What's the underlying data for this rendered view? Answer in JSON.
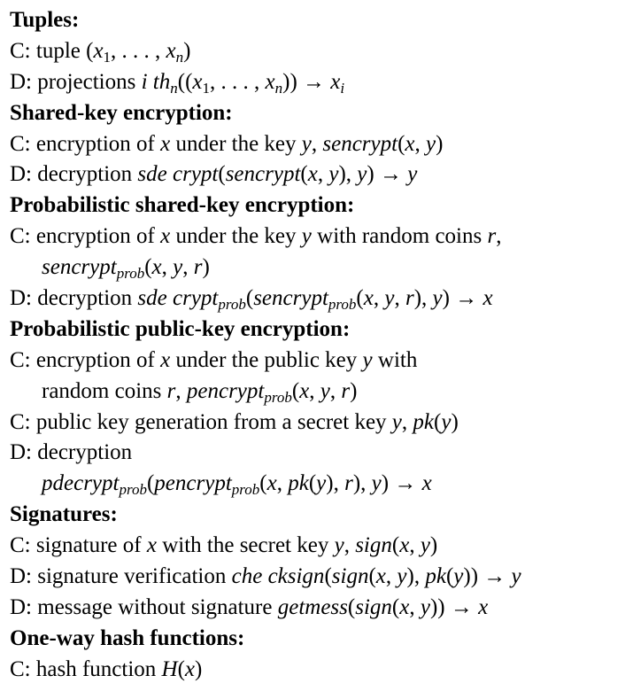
{
  "sections": [
    {
      "heading": "Tuples:",
      "lines": [
        {
          "prefix": "C: tuple ",
          "math": "(x₁, . . . , xₙ)"
        },
        {
          "prefix": "D: projections ",
          "math": "i thₙ((x₁, . . . , xₙ)) → xᵢ"
        }
      ]
    },
    {
      "heading": "Shared-key encryption:",
      "lines": [
        {
          "text": "C: encryption of x under the key y, sencrypt(x, y)"
        },
        {
          "text": "D: decryption sde crypt(sencrypt(x, y), y) → y"
        }
      ]
    },
    {
      "heading": "Probabilistic shared-key encryption:",
      "lines": [
        {
          "text": "C: encryption of x under the key y with random coins r,"
        },
        {
          "text": "sencrypt_prob(x, y, r)",
          "indent": true
        },
        {
          "text": "D: decryption sde crypt_prob(sencrypt_prob(x, y, r), y) → x"
        }
      ]
    },
    {
      "heading": "Probabilistic public-key encryption:",
      "lines": [
        {
          "text": "C: encryption of x under the public key y with"
        },
        {
          "text": "random coins r, pencrypt_prob(x, y, r)",
          "indent": true
        },
        {
          "text": "C: public key generation from a secret key y, pk(y)"
        },
        {
          "text": "D: decryption"
        },
        {
          "text": "pdecrypt_prob(pencrypt_prob(x, pk(y), r), y) → x",
          "indent": true
        }
      ]
    },
    {
      "heading": "Signatures:",
      "lines": [
        {
          "text": "C: signature of x with the secret key y, sign(x, y)"
        },
        {
          "text": "D: signature verification che cksign(sign(x, y), pk(y)) → y"
        },
        {
          "text": "D: message without signature getmess(sign(x, y)) → x"
        }
      ]
    },
    {
      "heading": "One-way hash functions:",
      "lines": [
        {
          "text": "C: hash function H(x)"
        }
      ]
    }
  ],
  "tokens": {
    "tuples_heading": "Tuples:",
    "t1_pre": "C: tuple ",
    "t2_pre": "D: projections ",
    "sk_heading": "Shared-key encryption:",
    "sk1_a": "C: encryption of ",
    "sk1_b": " under the key ",
    "sk1_c": ", ",
    "sk2_a": "D: decryption ",
    "psk_heading": "Probabilistic shared-key encryption:",
    "psk1_a": "C: encryption of ",
    "psk1_b": " under the key ",
    "psk1_c": " with random coins ",
    "psk1_d": ",",
    "psk3_a": "D: decryption ",
    "ppk_heading": "Probabilistic public-key encryption:",
    "ppk1_a": "C: encryption of ",
    "ppk1_b": " under the public key ",
    "ppk1_c": " with",
    "ppk2_a": "random coins ",
    "ppk2_b": ", ",
    "ppk3_a": "C: public key generation from a secret key ",
    "ppk3_b": ", ",
    "ppk4_a": "D: decryption",
    "sig_heading": "Signatures:",
    "sig1_a": "C: signature of ",
    "sig1_b": " with the secret key ",
    "sig1_c": ", ",
    "sig2_a": "D: signature verification ",
    "sig3_a": "D: message without signature ",
    "hash_heading": "One-way hash functions:",
    "hash1_a": "C: hash function ",
    "x": "x",
    "y": "y",
    "r": "r",
    "prob": "prob",
    "sencrypt": "sencrypt",
    "sdecrypt": "sde crypt",
    "pencrypt": "pencrypt",
    "pdecrypt": "pdecrypt",
    "pk": "pk",
    "sign": "sign",
    "checksign": "che cksign",
    "getmess": "getmess",
    "H": "H",
    "ith": "i th",
    "n": "n",
    "i": "i",
    "x1": "x",
    "one": "1",
    "tuple_math": "(x₁, . . . , xₙ)"
  }
}
